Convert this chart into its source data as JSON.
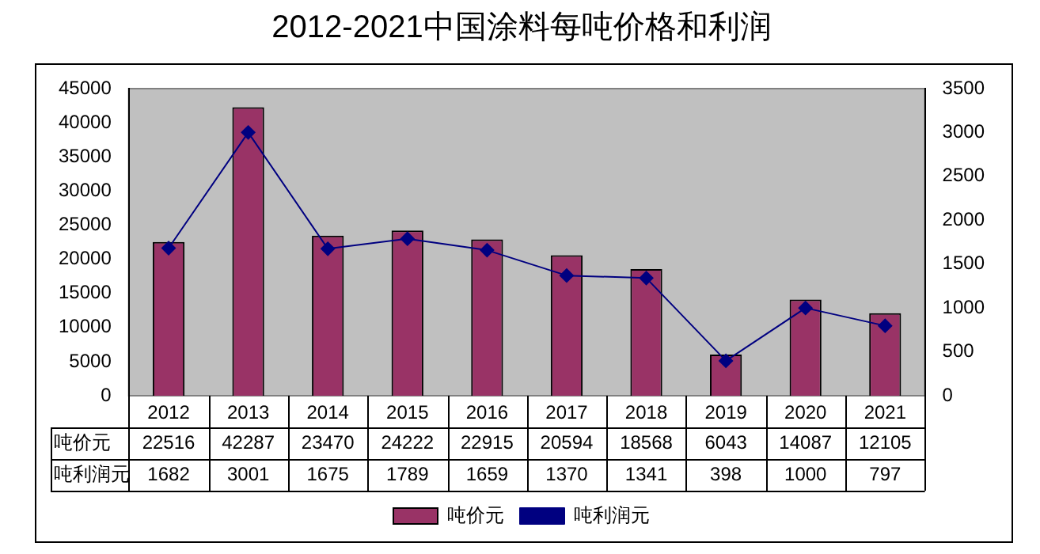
{
  "chart_data": {
    "type": "bar",
    "title": "2012-2021中国涂料每吨价格和利润",
    "categories": [
      "2012",
      "2013",
      "2014",
      "2015",
      "2016",
      "2017",
      "2018",
      "2019",
      "2020",
      "2021"
    ],
    "series": [
      {
        "name": "吨价元",
        "color": "#993366",
        "values": [
          22516,
          42287,
          23470,
          24222,
          22915,
          20594,
          18568,
          6043,
          14087,
          12105
        ]
      },
      {
        "name": "吨利润元",
        "type": "line",
        "axis": "y2",
        "color": "#000080",
        "marker": "diamond",
        "values": [
          1682,
          3001,
          1675,
          1789,
          1659,
          1370,
          1341,
          398,
          1000,
          797
        ]
      }
    ],
    "ylim": [
      0,
      45000
    ],
    "yticks": [
      0,
      5000,
      10000,
      15000,
      20000,
      25000,
      30000,
      35000,
      40000,
      45000
    ],
    "y2lim": [
      0,
      3500
    ],
    "y2ticks": [
      0,
      500,
      1000,
      1500,
      2000,
      2500,
      3000,
      3500
    ],
    "grid": false,
    "legend": "bottom",
    "data_labels": true
  }
}
